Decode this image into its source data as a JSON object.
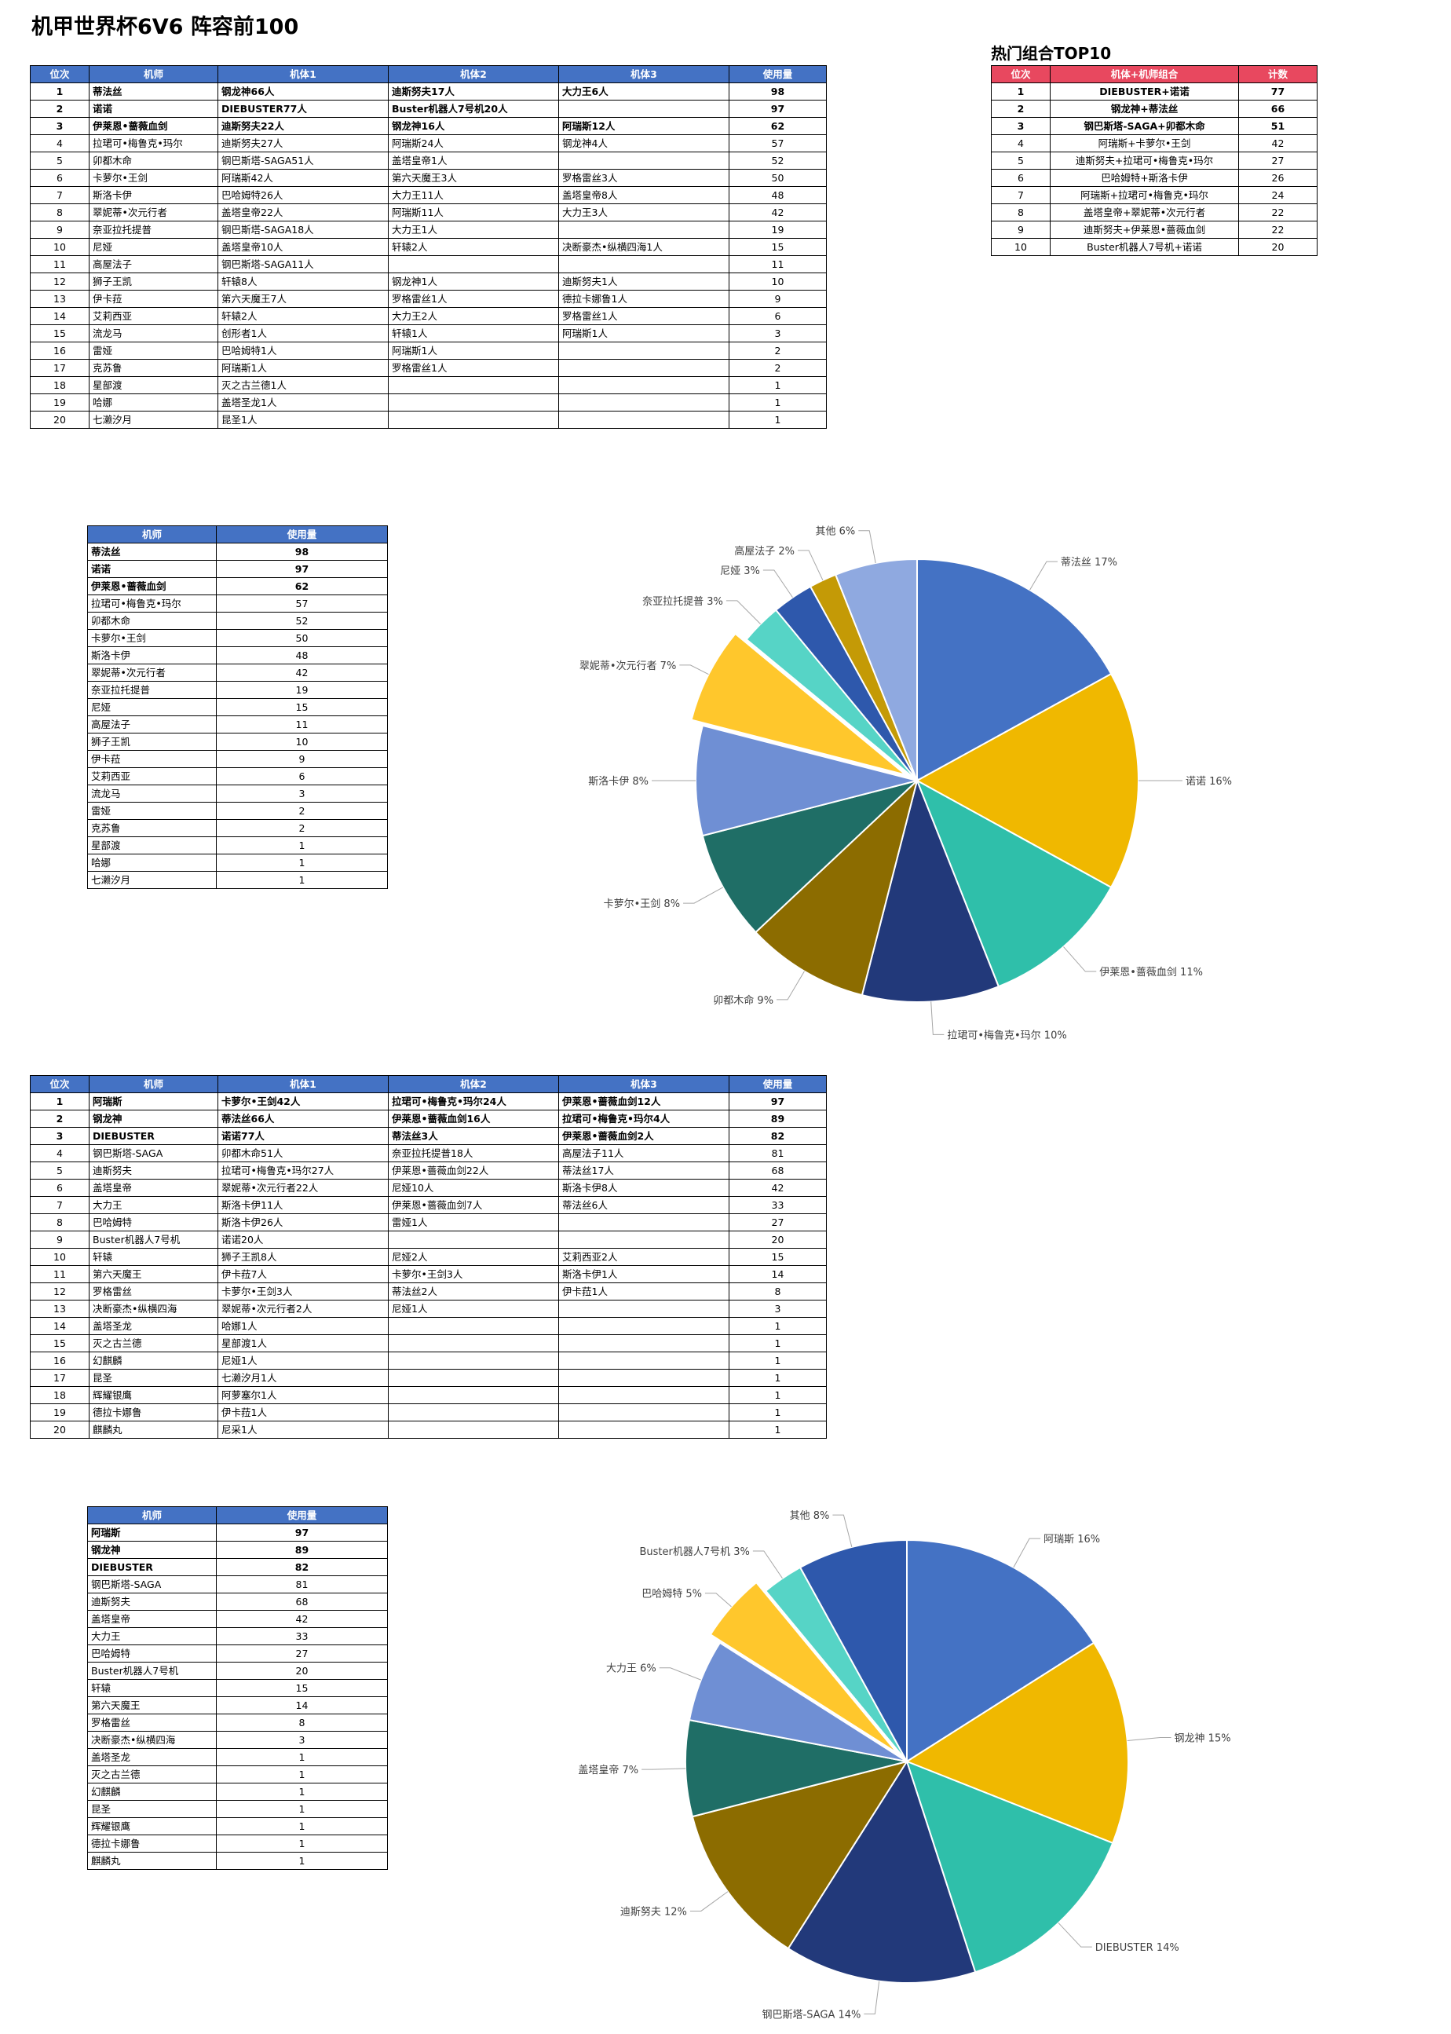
{
  "title": "机甲世界杯6V6 阵容前100",
  "table1": {
    "headers": [
      "位次",
      "机师",
      "机体1",
      "机体2",
      "机体3",
      "使用量"
    ],
    "rows": [
      [
        "1",
        "蒂法丝",
        "钢龙神66人",
        "迪斯努夫17人",
        "大力王6人",
        "98"
      ],
      [
        "2",
        "诺诺",
        "DIEBUSTER77人",
        "Buster机器人7号机20人",
        "",
        "97"
      ],
      [
        "3",
        "伊莱恩•蔷薇血剑",
        "迪斯努夫22人",
        "钢龙神16人",
        "阿瑞斯12人",
        "62"
      ],
      [
        "4",
        "拉珺可•梅鲁克•玛尔",
        "迪斯努夫27人",
        "阿瑞斯24人",
        "钢龙神4人",
        "57"
      ],
      [
        "5",
        "卯都木命",
        "钢巴斯塔-SAGA51人",
        "盖塔皇帝1人",
        "",
        "52"
      ],
      [
        "6",
        "卡萝尔•王剑",
        "阿瑞斯42人",
        "第六天魔王3人",
        "罗格雷丝3人",
        "50"
      ],
      [
        "7",
        "斯洛卡伊",
        "巴哈姆特26人",
        "大力王11人",
        "盖塔皇帝8人",
        "48"
      ],
      [
        "8",
        "翠妮蒂•次元行者",
        "盖塔皇帝22人",
        "阿瑞斯11人",
        "大力王3人",
        "42"
      ],
      [
        "9",
        "奈亚拉托提普",
        "钢巴斯塔-SAGA18人",
        "大力王1人",
        "",
        "19"
      ],
      [
        "10",
        "尼娅",
        "盖塔皇帝10人",
        "轩辕2人",
        "决断豪杰•纵横四海1人",
        "15"
      ],
      [
        "11",
        "高屋法子",
        "钢巴斯塔-SAGA11人",
        "",
        "",
        "11"
      ],
      [
        "12",
        "狮子王凯",
        "轩辕8人",
        "钢龙神1人",
        "迪斯努夫1人",
        "10"
      ],
      [
        "13",
        "伊卡菈",
        "第六天魔王7人",
        "罗格雷丝1人",
        "德拉卡娜鲁1人",
        "9"
      ],
      [
        "14",
        "艾莉西亚",
        "轩辕2人",
        "大力王2人",
        "罗格雷丝1人",
        "6"
      ],
      [
        "15",
        "流龙马",
        "创形者1人",
        "轩辕1人",
        "阿瑞斯1人",
        "3"
      ],
      [
        "16",
        "雷娅",
        "巴哈姆特1人",
        "阿瑞斯1人",
        "",
        "2"
      ],
      [
        "17",
        "克苏鲁",
        "阿瑞斯1人",
        "罗格雷丝1人",
        "",
        "2"
      ],
      [
        "18",
        "星部渡",
        "灭之古兰德1人",
        "",
        "",
        "1"
      ],
      [
        "19",
        "哈娜",
        "盖塔圣龙1人",
        "",
        "",
        "1"
      ],
      [
        "20",
        "七濑汐月",
        "昆圣1人",
        "",
        "",
        "1"
      ]
    ]
  },
  "top10": {
    "title": "热门组合TOP10",
    "headers": [
      "位次",
      "机体+机师组合",
      "计数"
    ],
    "rows": [
      [
        "1",
        "DIEBUSTER+诺诺",
        "77"
      ],
      [
        "2",
        "钢龙神+蒂法丝",
        "66"
      ],
      [
        "3",
        "钢巴斯塔-SAGA+卯都木命",
        "51"
      ],
      [
        "4",
        "阿瑞斯+卡萝尔•王剑",
        "42"
      ],
      [
        "5",
        "迪斯努夫+拉珺可•梅鲁克•玛尔",
        "27"
      ],
      [
        "6",
        "巴哈姆特+斯洛卡伊",
        "26"
      ],
      [
        "7",
        "阿瑞斯+拉珺可•梅鲁克•玛尔",
        "24"
      ],
      [
        "8",
        "盖塔皇帝+翠妮蒂•次元行者",
        "22"
      ],
      [
        "9",
        "迪斯努夫+伊莱恩•蔷薇血剑",
        "22"
      ],
      [
        "10",
        "Buster机器人7号机+诺诺",
        "20"
      ]
    ]
  },
  "table2": {
    "headers": [
      "机师",
      "使用量"
    ],
    "rows": [
      [
        "蒂法丝",
        "98"
      ],
      [
        "诺诺",
        "97"
      ],
      [
        "伊莱恩•蔷薇血剑",
        "62"
      ],
      [
        "拉珺可•梅鲁克•玛尔",
        "57"
      ],
      [
        "卯都木命",
        "52"
      ],
      [
        "卡萝尔•王剑",
        "50"
      ],
      [
        "斯洛卡伊",
        "48"
      ],
      [
        "翠妮蒂•次元行者",
        "42"
      ],
      [
        "奈亚拉托提普",
        "19"
      ],
      [
        "尼娅",
        "15"
      ],
      [
        "高屋法子",
        "11"
      ],
      [
        "狮子王凯",
        "10"
      ],
      [
        "伊卡菈",
        "9"
      ],
      [
        "艾莉西亚",
        "6"
      ],
      [
        "流龙马",
        "3"
      ],
      [
        "雷娅",
        "2"
      ],
      [
        "克苏鲁",
        "2"
      ],
      [
        "星部渡",
        "1"
      ],
      [
        "哈娜",
        "1"
      ],
      [
        "七濑汐月",
        "1"
      ]
    ]
  },
  "table3": {
    "headers": [
      "位次",
      "机师",
      "机体1",
      "机体2",
      "机体3",
      "使用量"
    ],
    "rows": [
      [
        "1",
        "阿瑞斯",
        "卡萝尔•王剑42人",
        "拉珺可•梅鲁克•玛尔24人",
        "伊莱恩•蔷薇血剑12人",
        "97"
      ],
      [
        "2",
        "钢龙神",
        "蒂法丝66人",
        "伊莱恩•蔷薇血剑16人",
        "拉珺可•梅鲁克•玛尔4人",
        "89"
      ],
      [
        "3",
        "DIEBUSTER",
        "诺诺77人",
        "蒂法丝3人",
        "伊莱恩•蔷薇血剑2人",
        "82"
      ],
      [
        "4",
        "钢巴斯塔-SAGA",
        "卯都木命51人",
        "奈亚拉托提普18人",
        "高屋法子11人",
        "81"
      ],
      [
        "5",
        "迪斯努夫",
        "拉珺可•梅鲁克•玛尔27人",
        "伊莱恩•蔷薇血剑22人",
        "蒂法丝17人",
        "68"
      ],
      [
        "6",
        "盖塔皇帝",
        "翠妮蒂•次元行者22人",
        "尼娅10人",
        "斯洛卡伊8人",
        "42"
      ],
      [
        "7",
        "大力王",
        "斯洛卡伊11人",
        "伊莱恩•蔷薇血剑7人",
        "蒂法丝6人",
        "33"
      ],
      [
        "8",
        "巴哈姆特",
        "斯洛卡伊26人",
        "雷娅1人",
        "",
        "27"
      ],
      [
        "9",
        "Buster机器人7号机",
        "诺诺20人",
        "",
        "",
        "20"
      ],
      [
        "10",
        "轩辕",
        "狮子王凯8人",
        "尼娅2人",
        "艾莉西亚2人",
        "15"
      ],
      [
        "11",
        "第六天魔王",
        "伊卡菈7人",
        "卡萝尔•王剑3人",
        "斯洛卡伊1人",
        "14"
      ],
      [
        "12",
        "罗格雷丝",
        "卡萝尔•王剑3人",
        "蒂法丝2人",
        "伊卡菈1人",
        "8"
      ],
      [
        "13",
        "决断豪杰•纵横四海",
        "翠妮蒂•次元行者2人",
        "尼娅1人",
        "",
        "3"
      ],
      [
        "14",
        "盖塔圣龙",
        "哈娜1人",
        "",
        "",
        "1"
      ],
      [
        "15",
        "灭之古兰德",
        "星部渡1人",
        "",
        "",
        "1"
      ],
      [
        "16",
        "幻麒麟",
        "尼娅1人",
        "",
        "",
        "1"
      ],
      [
        "17",
        "昆圣",
        "七濑汐月1人",
        "",
        "",
        "1"
      ],
      [
        "18",
        "辉耀银鹰",
        "阿萝塞尔1人",
        "",
        "",
        "1"
      ],
      [
        "19",
        "德拉卡娜鲁",
        "伊卡菈1人",
        "",
        "",
        "1"
      ],
      [
        "20",
        "麒麟丸",
        "尼采1人",
        "",
        "",
        "1"
      ]
    ]
  },
  "table4": {
    "headers": [
      "机师",
      "使用量"
    ],
    "rows": [
      [
        "阿瑞斯",
        "97"
      ],
      [
        "钢龙神",
        "89"
      ],
      [
        "DIEBUSTER",
        "82"
      ],
      [
        "钢巴斯塔-SAGA",
        "81"
      ],
      [
        "迪斯努夫",
        "68"
      ],
      [
        "盖塔皇帝",
        "42"
      ],
      [
        "大力王",
        "33"
      ],
      [
        "巴哈姆特",
        "27"
      ],
      [
        "Buster机器人7号机",
        "20"
      ],
      [
        "轩辕",
        "15"
      ],
      [
        "第六天魔王",
        "14"
      ],
      [
        "罗格雷丝",
        "8"
      ],
      [
        "决断豪杰•纵横四海",
        "3"
      ],
      [
        "盖塔圣龙",
        "1"
      ],
      [
        "灭之古兰德",
        "1"
      ],
      [
        "幻麒麟",
        "1"
      ],
      [
        "昆圣",
        "1"
      ],
      [
        "辉耀银鹰",
        "1"
      ],
      [
        "德拉卡娜鲁",
        "1"
      ],
      [
        "麒麟丸",
        "1"
      ]
    ]
  },
  "chart_data": [
    {
      "type": "pie",
      "title": "",
      "slices": [
        {
          "label": "蒂法丝 17%",
          "value": 17,
          "color": "#4472c4"
        },
        {
          "label": "诺诺 16%",
          "value": 16,
          "color": "#f0b800"
        },
        {
          "label": "伊莱恩•蔷薇血剑 11%",
          "value": 11,
          "color": "#2fbfaa"
        },
        {
          "label": "拉珺可•梅鲁克•玛尔 10%",
          "value": 10,
          "color": "#22397a"
        },
        {
          "label": "卯都木命 9%",
          "value": 9,
          "color": "#8c6c00"
        },
        {
          "label": "卡萝尔•王剑 8%",
          "value": 8,
          "color": "#1f6e66"
        },
        {
          "label": "斯洛卡伊 8%",
          "value": 8,
          "color": "#6f8fd4"
        },
        {
          "label": "翠妮蒂•次元行者 7%",
          "value": 7,
          "color": "#ffc72c",
          "explode": true
        },
        {
          "label": "奈亚拉托提普 3%",
          "value": 3,
          "color": "#56d4c6"
        },
        {
          "label": "尼娅 3%",
          "value": 3,
          "color": "#2e58ac"
        },
        {
          "label": "高屋法子 2%",
          "value": 2,
          "color": "#c49a06"
        },
        {
          "label": "其他 6%",
          "value": 6,
          "color": "#8fa9e0"
        }
      ]
    },
    {
      "type": "pie",
      "title": "",
      "slices": [
        {
          "label": "阿瑞斯 16%",
          "value": 16,
          "color": "#4472c4"
        },
        {
          "label": "钢龙神 15%",
          "value": 15,
          "color": "#f0b800"
        },
        {
          "label": "DIEBUSTER 14%",
          "value": 14,
          "color": "#2fbfaa"
        },
        {
          "label": "钢巴斯塔-SAGA 14%",
          "value": 14,
          "color": "#22397a"
        },
        {
          "label": "迪斯努夫 12%",
          "value": 12,
          "color": "#8c6c00"
        },
        {
          "label": "盖塔皇帝 7%",
          "value": 7,
          "color": "#1f6e66"
        },
        {
          "label": "大力王 6%",
          "value": 6,
          "color": "#6f8fd4"
        },
        {
          "label": "巴哈姆特 5%",
          "value": 5,
          "color": "#ffc72c",
          "explode": true
        },
        {
          "label": "Buster机器人7号机 3%",
          "value": 3,
          "color": "#56d4c6"
        },
        {
          "label": "其他 8%",
          "value": 8,
          "color": "#2e58ac"
        }
      ]
    }
  ]
}
